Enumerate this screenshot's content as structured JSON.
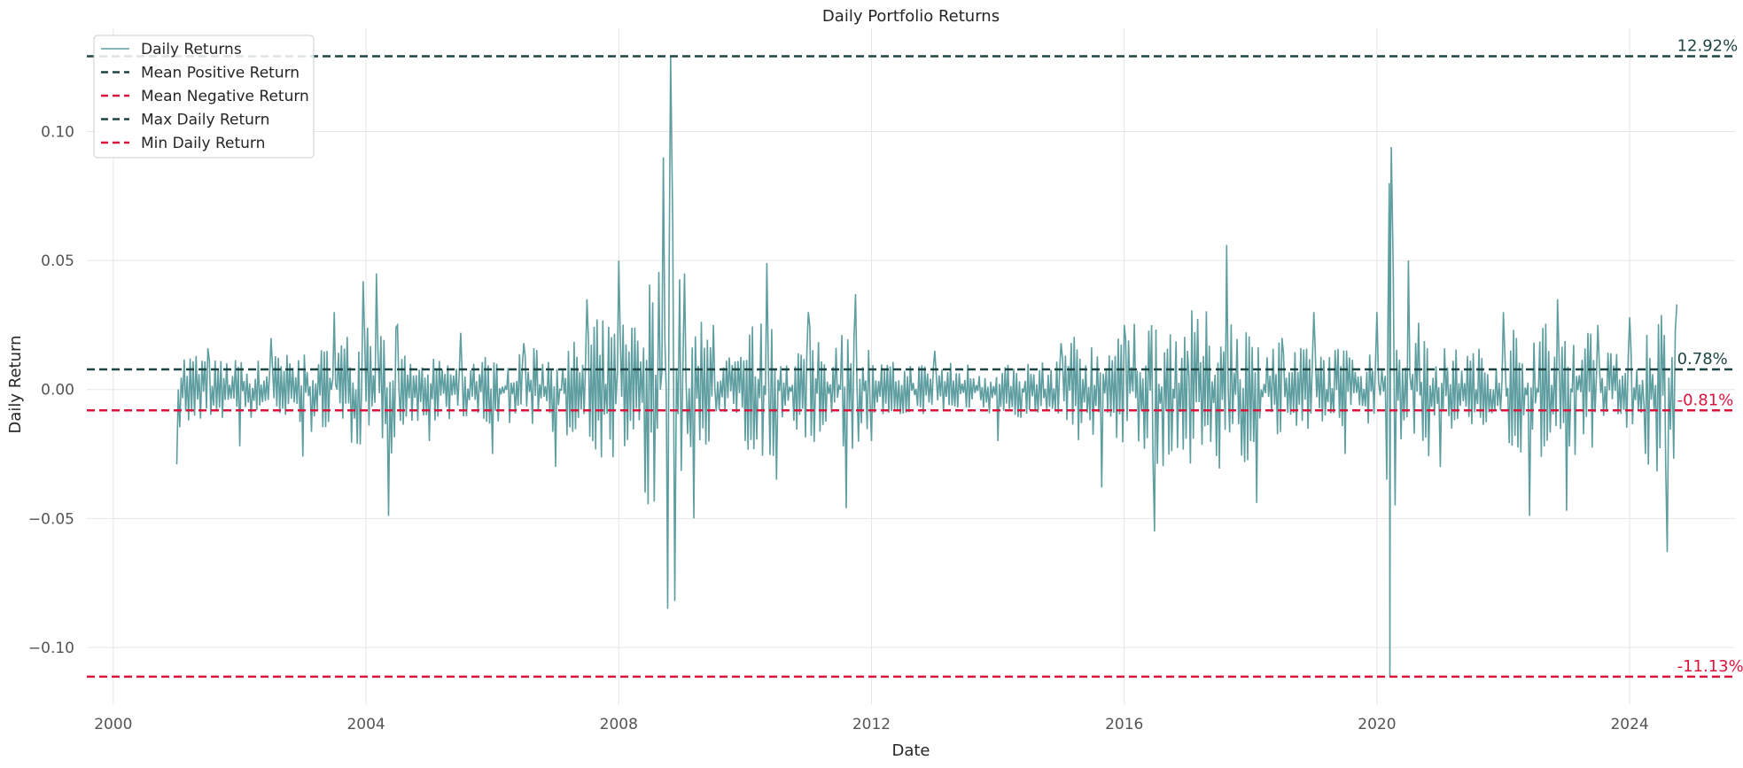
{
  "chart_data": {
    "type": "line",
    "title": "Daily Portfolio Returns",
    "xlabel": "Date",
    "ylabel": "Daily Return",
    "xlim": [
      "1999-08-01",
      "2025-09-01"
    ],
    "ylim": [
      -0.122,
      0.14
    ],
    "grid": true,
    "legend_position": "top-left",
    "x_ticks": [
      {
        "value": "2000-01-01",
        "label": "2000"
      },
      {
        "value": "2004-01-01",
        "label": "2004"
      },
      {
        "value": "2008-01-01",
        "label": "2008"
      },
      {
        "value": "2012-01-01",
        "label": "2012"
      },
      {
        "value": "2016-01-01",
        "label": "2016"
      },
      {
        "value": "2020-01-01",
        "label": "2020"
      },
      {
        "value": "2024-01-01",
        "label": "2024"
      }
    ],
    "y_ticks": [
      {
        "value": -0.1,
        "label": "−0.10"
      },
      {
        "value": -0.05,
        "label": "−0.05"
      },
      {
        "value": 0.0,
        "label": "0.00"
      },
      {
        "value": 0.05,
        "label": "0.05"
      },
      {
        "value": 0.1,
        "label": "0.10"
      }
    ],
    "series": [
      {
        "name": "Daily Returns",
        "color": "#5f9ea0",
        "x": [
          "2001-01-02",
          "2001-07-01",
          "2002-01-01",
          "2002-07-01",
          "2003-01-01",
          "2003-07-01",
          "2003-12-15",
          "2004-03-01",
          "2004-05-10",
          "2004-07-01",
          "2005-01-01",
          "2005-07-01",
          "2006-01-01",
          "2006-07-01",
          "2007-01-01",
          "2007-07-01",
          "2008-01-01",
          "2008-06-01",
          "2008-09-15",
          "2008-10-10",
          "2008-10-27",
          "2008-11-20",
          "2009-01-15",
          "2009-03-10",
          "2009-07-01",
          "2010-01-01",
          "2010-05-06",
          "2010-07-01",
          "2011-01-01",
          "2011-08-08",
          "2011-10-01",
          "2012-01-01",
          "2013-01-01",
          "2014-01-01",
          "2015-01-01",
          "2015-08-24",
          "2016-01-01",
          "2016-06-24",
          "2017-01-01",
          "2017-08-15",
          "2018-01-01",
          "2018-02-05",
          "2018-07-01",
          "2019-01-01",
          "2019-07-01",
          "2020-01-01",
          "2020-02-27",
          "2020-03-12",
          "2020-03-16",
          "2020-03-24",
          "2020-04-15",
          "2020-07-01",
          "2021-01-01",
          "2022-01-01",
          "2022-06-01",
          "2022-11-10",
          "2023-01-01",
          "2023-07-01",
          "2024-01-01",
          "2024-04-01",
          "2024-08-05",
          "2024-09-30"
        ],
        "y": [
          -0.029,
          0.016,
          -0.022,
          0.02,
          -0.026,
          0.03,
          0.042,
          0.045,
          -0.049,
          0.025,
          -0.02,
          0.022,
          -0.025,
          0.018,
          -0.03,
          0.035,
          0.05,
          -0.04,
          0.09,
          -0.085,
          0.1292,
          -0.082,
          0.045,
          -0.05,
          0.025,
          -0.02,
          0.049,
          -0.035,
          0.03,
          -0.046,
          0.037,
          -0.02,
          0.015,
          -0.02,
          0.018,
          -0.038,
          0.025,
          -0.055,
          0.015,
          0.056,
          -0.02,
          -0.044,
          0.02,
          0.03,
          -0.025,
          0.03,
          -0.035,
          0.08,
          -0.1113,
          0.094,
          -0.045,
          0.05,
          -0.03,
          0.03,
          -0.049,
          0.035,
          -0.047,
          0.025,
          0.028,
          -0.025,
          -0.063,
          0.033
        ]
      }
    ],
    "reference_lines": [
      {
        "name": "Mean Positive Return",
        "value": 0.0078,
        "color": "#1f4444",
        "label": "0.78%"
      },
      {
        "name": "Mean Negative Return",
        "value": -0.0081,
        "color": "#dc143c",
        "label": "-0.81%"
      },
      {
        "name": "Max Daily Return",
        "value": 0.1292,
        "color": "#1f4444",
        "label": "12.92%"
      },
      {
        "name": "Min Daily Return",
        "value": -0.1113,
        "color": "#dc143c",
        "label": "-11.13%"
      }
    ],
    "colors": {
      "series": "#5f9ea0",
      "dark_line": "#1f4444",
      "red_line": "#dc143c",
      "grid": "#e6e6e6"
    }
  }
}
